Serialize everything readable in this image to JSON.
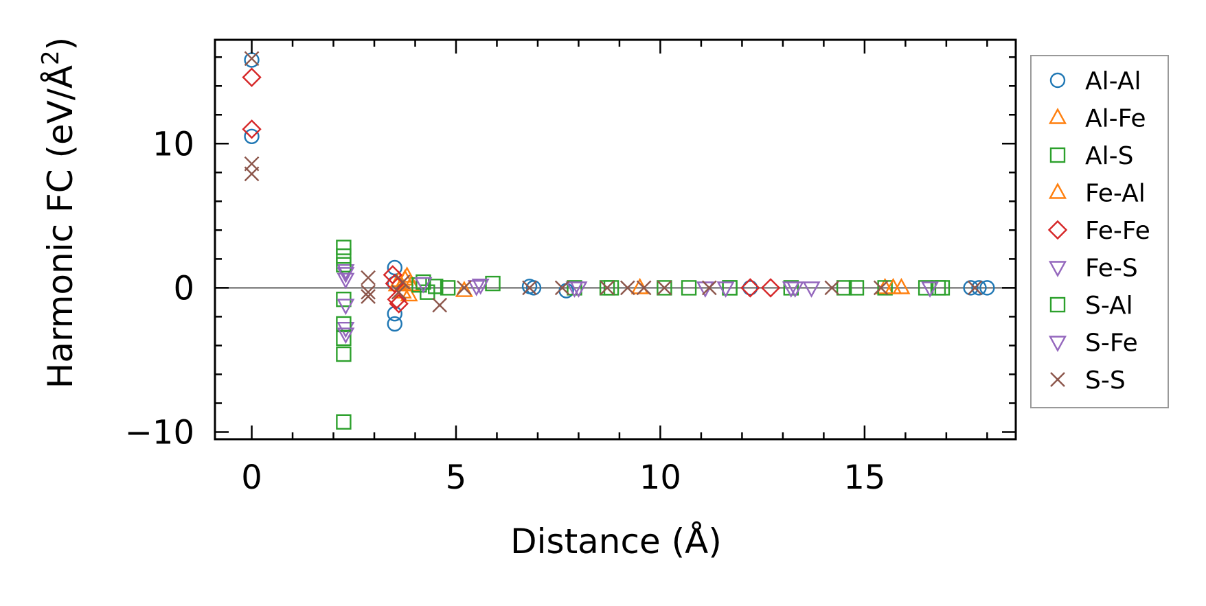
{
  "chart_data": {
    "type": "scatter",
    "xlabel": "Distance (Å)",
    "ylabel_main": "Harmonic FC (eV/Å",
    "ylabel_sup": "2",
    "ylabel_end": ")",
    "xlim": [
      -0.9,
      18.7
    ],
    "ylim": [
      -10.5,
      17.2
    ],
    "xticks": [
      0,
      5,
      10,
      15
    ],
    "xtick_labels": [
      "0",
      "5",
      "10",
      "15"
    ],
    "yticks": [
      -10,
      0,
      10
    ],
    "ytick_labels": [
      "−10",
      "0",
      "10"
    ],
    "zero_line": true,
    "legend_position": "outside-right",
    "series": [
      {
        "name": "Al-Al",
        "marker": "circle",
        "color": "#1f77b4",
        "x": [
          0,
          0,
          3.5,
          3.5,
          3.5,
          3.5,
          6.8,
          6.9,
          7.7,
          12.2,
          17.6,
          17.8,
          18.0
        ],
        "y": [
          15.8,
          10.5,
          1.4,
          -2.5,
          -1.8,
          0.3,
          0.1,
          0.0,
          -0.2,
          0.0,
          0.0,
          0.0,
          0.0
        ]
      },
      {
        "name": "Al-Fe",
        "marker": "triangle-up",
        "color": "#ff7f0e",
        "x": [
          3.6,
          3.7,
          3.8,
          3.9,
          5.2,
          9.5,
          15.5,
          15.9
        ],
        "y": [
          0.5,
          -0.3,
          0.8,
          0.2,
          -0.2,
          0.0,
          0.0,
          0.0
        ]
      },
      {
        "name": "Al-S",
        "marker": "square",
        "color": "#2ca02c",
        "x": [
          2.25,
          2.25,
          2.25,
          2.25,
          2.25,
          2.25,
          4.2,
          4.3,
          4.8,
          5.9,
          7.9,
          8.7,
          10.1,
          10.7,
          11.7,
          13.2,
          14.5,
          14.8,
          15.5,
          16.5,
          16.8
        ],
        "y": [
          2.8,
          2.2,
          -0.8,
          -3.5,
          -4.6,
          -9.3,
          0.4,
          -0.3,
          0.0,
          0.3,
          0.0,
          0.0,
          0.0,
          0.0,
          0.0,
          0.0,
          0.0,
          0.0,
          0.0,
          0.0,
          0.0
        ]
      },
      {
        "name": "Fe-Al",
        "marker": "triangle-up",
        "color": "#ff7f0e",
        "x": [
          3.55,
          3.75,
          3.85,
          15.7
        ],
        "y": [
          0.2,
          0.6,
          -0.5,
          0.0
        ]
      },
      {
        "name": "Fe-Fe",
        "marker": "diamond",
        "color": "#d62728",
        "x": [
          0,
          0,
          3.45,
          3.5,
          3.55,
          3.6,
          12.2,
          12.7
        ],
        "y": [
          14.6,
          11.0,
          0.9,
          0.3,
          -0.8,
          -1.1,
          0.0,
          0.0
        ]
      },
      {
        "name": "Fe-S",
        "marker": "triangle-down",
        "color": "#9467bd",
        "x": [
          2.3,
          2.3,
          2.3,
          2.3,
          5.5,
          8.0,
          11.1,
          13.2,
          13.7
        ],
        "y": [
          1.2,
          0.6,
          -1.2,
          -2.8,
          0.1,
          0.0,
          0.0,
          0.0,
          0.0
        ]
      },
      {
        "name": "S-Al",
        "marker": "square",
        "color": "#2ca02c",
        "x": [
          2.25,
          2.25,
          4.1,
          4.5,
          8.8,
          11.7,
          16.9
        ],
        "y": [
          1.6,
          -2.5,
          0.2,
          0.1,
          0.0,
          0.0,
          0.0
        ]
      },
      {
        "name": "S-Fe",
        "marker": "triangle-down",
        "color": "#9467bd",
        "x": [
          2.3,
          2.3,
          4.2,
          5.6,
          7.9,
          11.6,
          13.3,
          16.6
        ],
        "y": [
          1.0,
          -3.2,
          0.3,
          0.2,
          0.0,
          0.0,
          0.0,
          0.0
        ]
      },
      {
        "name": "S-S",
        "marker": "x",
        "color": "#8c564b",
        "x": [
          0,
          0,
          0,
          2.85,
          2.85,
          2.85,
          3.6,
          3.7,
          4.6,
          5.2,
          6.8,
          7.6,
          8.7,
          9.2,
          9.6,
          10.1,
          11.2,
          14.2,
          15.4,
          17.7
        ],
        "y": [
          15.9,
          8.6,
          7.9,
          0.7,
          -0.6,
          -0.3,
          -0.3,
          0.4,
          -1.2,
          0.0,
          0.0,
          0.0,
          0.0,
          0.0,
          0.0,
          0.0,
          0.0,
          0.0,
          0.0,
          0.0
        ]
      }
    ]
  }
}
